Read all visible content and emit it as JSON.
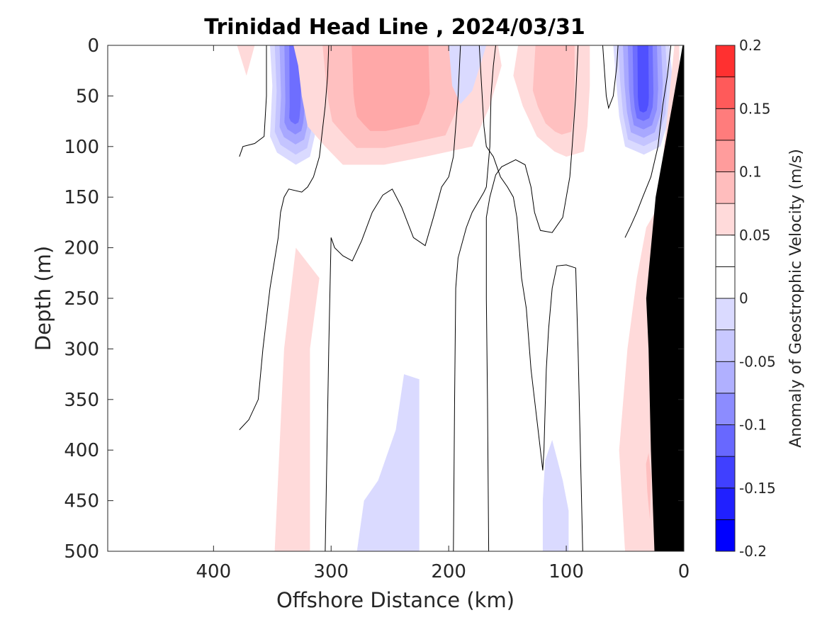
{
  "chart_data": {
    "type": "heatmap",
    "title": "Trinidad Head Line , 2024/03/31",
    "xlabel": "Offshore Distance (km)",
    "ylabel": "Depth (m)",
    "xlim": [
      490,
      0
    ],
    "ylim": [
      0,
      500
    ],
    "x_reversed": true,
    "y_reversed": true,
    "x_ticks": [
      400,
      300,
      200,
      100,
      0
    ],
    "x_tick_labels": [
      "400",
      "300",
      "200",
      "100",
      "0"
    ],
    "y_ticks": [
      0,
      50,
      100,
      150,
      200,
      250,
      300,
      350,
      400,
      450,
      500
    ],
    "y_tick_labels": [
      "0",
      "50",
      "100",
      "150",
      "200",
      "250",
      "300",
      "350",
      "400",
      "450",
      "500"
    ],
    "colorbar": {
      "label": "Anomaly of Geostrophic Velocity (m/s)",
      "min": -0.2,
      "max": 0.2,
      "levels": [
        -0.2,
        -0.175,
        -0.15,
        -0.125,
        -0.1,
        -0.075,
        -0.05,
        -0.025,
        0,
        0.025,
        0.05,
        0.075,
        0.1,
        0.125,
        0.15,
        0.175,
        0.2
      ],
      "colors": [
        "#0000ff",
        "#2020ff",
        "#4040ff",
        "#6060ff",
        "#8080ff",
        "#a0a0ff",
        "#c0c0ff",
        "#dadaff",
        "#ffffff",
        "#ffffff",
        "#ffdada",
        "#ffc0c0",
        "#ffa0a0",
        "#ff8080",
        "#ff6060",
        "#ff4040",
        "#ff0000"
      ],
      "tick_values": [
        -0.2,
        -0.15,
        -0.1,
        -0.05,
        0,
        0.05,
        0.1,
        0.15,
        0.2
      ],
      "tick_labels": [
        "-0.2",
        "-0.15",
        "-0.1",
        "-0.05",
        "0",
        "0.05",
        "0.1",
        "0.15",
        "0.2"
      ]
    },
    "colors": {
      "positive_light": "#ffdada",
      "positive_mid": "#ffb8b8",
      "positive_strong": "#ff9090",
      "negative_light": "#dadaff",
      "negative_mid": "#b0b0ff",
      "negative_strong": "#4a4aff",
      "bathymetry": "#000000",
      "contour_zero": "#000000"
    },
    "regions": [
      {
        "name": "neg-core-330",
        "sign": "negative",
        "peak": -0.15,
        "points": [
          [
            352,
            90
          ],
          [
            350,
            40
          ],
          [
            352,
            0
          ],
          [
            305,
            0
          ],
          [
            310,
            40
          ],
          [
            314,
            90
          ],
          [
            318,
            110
          ],
          [
            330,
            118
          ],
          [
            346,
            106
          ]
        ]
      },
      {
        "name": "pos-core-240",
        "sign": "positive",
        "peak": 0.1,
        "points": [
          [
            332,
            0
          ],
          [
            328,
            20
          ],
          [
            325,
            50
          ],
          [
            320,
            80
          ],
          [
            305,
            100
          ],
          [
            290,
            118
          ],
          [
            255,
            118
          ],
          [
            220,
            110
          ],
          [
            180,
            100
          ],
          [
            165,
            60
          ],
          [
            155,
            20
          ],
          [
            158,
            0
          ]
        ]
      },
      {
        "name": "neg-small-190",
        "sign": "negative",
        "peak": -0.05,
        "points": [
          [
            200,
            0
          ],
          [
            197,
            40
          ],
          [
            190,
            58
          ],
          [
            180,
            45
          ],
          [
            168,
            0
          ]
        ]
      },
      {
        "name": "pos-core-120",
        "sign": "positive",
        "peak": 0.075,
        "points": [
          [
            141,
            0
          ],
          [
            145,
            30
          ],
          [
            137,
            60
          ],
          [
            125,
            90
          ],
          [
            110,
            105
          ],
          [
            100,
            110
          ],
          [
            85,
            105
          ],
          [
            82,
            80
          ],
          [
            80,
            40
          ],
          [
            80,
            0
          ]
        ]
      },
      {
        "name": "neg-core-30",
        "sign": "negative",
        "peak": -0.175,
        "points": [
          [
            60,
            0
          ],
          [
            58,
            30
          ],
          [
            55,
            70
          ],
          [
            50,
            100
          ],
          [
            34,
            108
          ],
          [
            20,
            100
          ],
          [
            12,
            70
          ],
          [
            10,
            30
          ],
          [
            12,
            0
          ]
        ]
      },
      {
        "name": "pos-small-375",
        "sign": "positive",
        "peak": 0.05,
        "points": [
          [
            380,
            0
          ],
          [
            372,
            30
          ],
          [
            365,
            0
          ]
        ]
      },
      {
        "name": "pos-deep-335",
        "sign": "positive",
        "peak": 0.05,
        "points": [
          [
            348,
            500
          ],
          [
            340,
            300
          ],
          [
            330,
            200
          ],
          [
            310,
            230
          ],
          [
            318,
            300
          ],
          [
            318,
            500
          ]
        ]
      },
      {
        "name": "neg-deep-245",
        "sign": "negative",
        "peak": -0.05,
        "points": [
          [
            278,
            500
          ],
          [
            272,
            450
          ],
          [
            260,
            430
          ],
          [
            245,
            380
          ],
          [
            238,
            325
          ],
          [
            225,
            330
          ],
          [
            225,
            500
          ]
        ]
      },
      {
        "name": "neg-deep-110",
        "sign": "negative",
        "peak": -0.05,
        "points": [
          [
            120,
            500
          ],
          [
            120,
            450
          ],
          [
            118,
            410
          ],
          [
            112,
            390
          ],
          [
            103,
            430
          ],
          [
            98,
            460
          ],
          [
            98,
            500
          ]
        ]
      },
      {
        "name": "pos-coastal",
        "sign": "positive",
        "peak": 0.05,
        "points": [
          [
            50,
            500
          ],
          [
            55,
            400
          ],
          [
            48,
            300
          ],
          [
            40,
            230
          ],
          [
            32,
            180
          ],
          [
            22,
            160
          ],
          [
            8,
            0
          ],
          [
            4,
            0
          ],
          [
            0,
            500
          ]
        ]
      },
      {
        "name": "pos-coastal-inner",
        "sign": "positive",
        "peak": 0.075,
        "points": [
          [
            28,
            500
          ],
          [
            32,
            450
          ],
          [
            34,
            400
          ],
          [
            30,
            380
          ],
          [
            26,
            420
          ]
        ]
      }
    ],
    "zero_contours": [
      [
        [
          378,
          110
        ],
        [
          375,
          100
        ],
        [
          365,
          97
        ],
        [
          357,
          90
        ],
        [
          355,
          50
        ],
        [
          355,
          0
        ]
      ],
      [
        [
          378,
          380
        ],
        [
          370,
          370
        ],
        [
          362,
          350
        ],
        [
          358,
          300
        ],
        [
          352,
          240
        ],
        [
          345,
          190
        ],
        [
          343,
          165
        ],
        [
          340,
          150
        ],
        [
          336,
          142
        ],
        [
          325,
          145
        ],
        [
          320,
          140
        ],
        [
          315,
          130
        ],
        [
          310,
          110
        ],
        [
          305,
          60
        ],
        [
          303,
          30
        ],
        [
          302,
          0
        ]
      ],
      [
        [
          305,
          500
        ],
        [
          302,
          300
        ],
        [
          300,
          190
        ],
        [
          297,
          200
        ],
        [
          290,
          208
        ],
        [
          282,
          213
        ],
        [
          274,
          193
        ],
        [
          265,
          165
        ],
        [
          256,
          148
        ],
        [
          248,
          142
        ],
        [
          240,
          160
        ],
        [
          230,
          190
        ],
        [
          220,
          198
        ],
        [
          213,
          170
        ],
        [
          206,
          140
        ],
        [
          200,
          130
        ],
        [
          196,
          110
        ],
        [
          194,
          80
        ],
        [
          192,
          50
        ],
        [
          190,
          0
        ]
      ],
      [
        [
          196,
          500
        ],
        [
          195,
          350
        ],
        [
          194,
          240
        ],
        [
          192,
          210
        ],
        [
          185,
          180
        ],
        [
          180,
          165
        ],
        [
          170,
          145
        ],
        [
          168,
          140
        ],
        [
          165,
          100
        ],
        [
          164,
          50
        ],
        [
          162,
          20
        ],
        [
          160,
          0
        ]
      ],
      [
        [
          166,
          500
        ],
        [
          167,
          350
        ],
        [
          168,
          250
        ],
        [
          168,
          170
        ],
        [
          165,
          150
        ],
        [
          160,
          128
        ],
        [
          155,
          120
        ],
        [
          143,
          113
        ],
        [
          135,
          118
        ],
        [
          130,
          140
        ],
        [
          127,
          165
        ],
        [
          122,
          183
        ],
        [
          112,
          185
        ],
        [
          103,
          170
        ],
        [
          100,
          150
        ],
        [
          97,
          130
        ],
        [
          95,
          100
        ],
        [
          92,
          50
        ],
        [
          90,
          0
        ]
      ],
      [
        [
          86,
          500
        ],
        [
          88,
          400
        ],
        [
          90,
          300
        ],
        [
          92,
          220
        ],
        [
          100,
          217
        ],
        [
          108,
          218
        ],
        [
          112,
          240
        ],
        [
          115,
          280
        ],
        [
          117,
          320
        ],
        [
          118,
          360
        ],
        [
          119,
          400
        ],
        [
          120,
          420
        ],
        [
          124,
          380
        ],
        [
          128,
          340
        ],
        [
          130,
          320
        ],
        [
          132,
          290
        ],
        [
          134,
          260
        ],
        [
          138,
          230
        ],
        [
          140,
          200
        ],
        [
          142,
          170
        ],
        [
          145,
          150
        ],
        [
          150,
          140
        ],
        [
          156,
          130
        ],
        [
          162,
          110
        ],
        [
          168,
          100
        ],
        [
          170,
          80
        ],
        [
          172,
          40
        ],
        [
          174,
          0
        ]
      ],
      [
        [
          69,
          0
        ],
        [
          66,
          50
        ],
        [
          64,
          62
        ],
        [
          60,
          50
        ],
        [
          57,
          20
        ],
        [
          56,
          0
        ]
      ],
      [
        [
          11,
          0
        ],
        [
          14,
          30
        ],
        [
          18,
          60
        ],
        [
          22,
          100
        ],
        [
          28,
          130
        ],
        [
          35,
          150
        ],
        [
          40,
          165
        ],
        [
          45,
          178
        ],
        [
          50,
          190
        ]
      ]
    ],
    "bathymetry": [
      [
        0,
        0
      ],
      [
        0,
        500
      ],
      [
        25,
        500
      ],
      [
        28,
        400
      ],
      [
        30,
        300
      ],
      [
        32,
        250
      ],
      [
        24,
        150
      ],
      [
        10,
        60
      ],
      [
        4,
        20
      ],
      [
        1,
        0
      ]
    ]
  }
}
